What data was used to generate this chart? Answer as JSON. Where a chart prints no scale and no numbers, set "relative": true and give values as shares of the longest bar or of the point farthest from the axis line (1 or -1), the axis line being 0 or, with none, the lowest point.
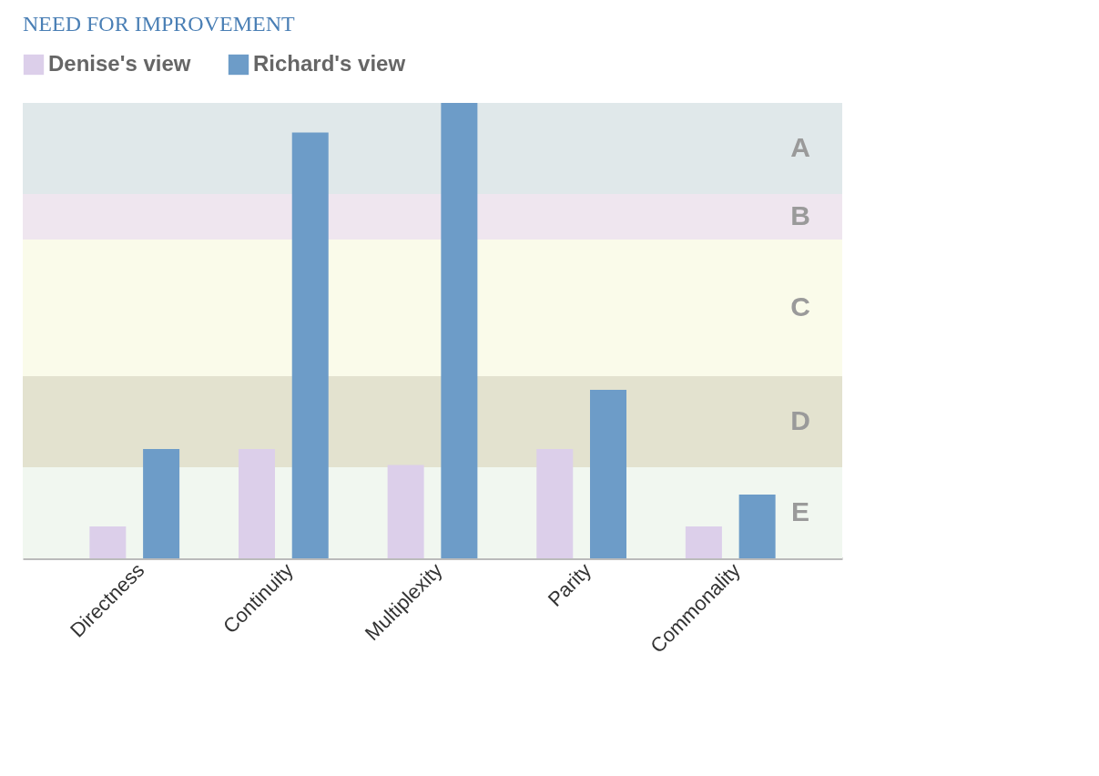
{
  "chart_data": {
    "type": "bar",
    "title": "NEED FOR IMPROVEMENT",
    "relative": true,
    "legend": "top",
    "categories": [
      "Directness",
      "Continuity",
      "Multiplexity",
      "Parity",
      "Commonality"
    ],
    "series": [
      {
        "name": "Denise's view",
        "color": "#dccfea",
        "values": [
          0.07,
          0.24,
          0.205,
          0.24,
          0.07
        ]
      },
      {
        "name": "Richard's view",
        "color": "#6d9cc8",
        "values": [
          0.24,
          0.935,
          1,
          0.37,
          0.14
        ]
      }
    ],
    "bands": [
      {
        "axis": "y",
        "from": 0.8,
        "to": 1.0,
        "label": "A",
        "color": "#e0e8ea"
      },
      {
        "axis": "y",
        "from": 0.7,
        "to": 0.8,
        "label": "B",
        "color": "#efe6ef"
      },
      {
        "axis": "y",
        "from": 0.4,
        "to": 0.7,
        "label": "C",
        "color": "#fafbea"
      },
      {
        "axis": "y",
        "from": 0.2,
        "to": 0.4,
        "label": "D",
        "color": "#e3e2cf"
      },
      {
        "axis": "y",
        "from": 0.0,
        "to": 0.2,
        "label": "E",
        "color": "#f1f7f0"
      }
    ]
  }
}
